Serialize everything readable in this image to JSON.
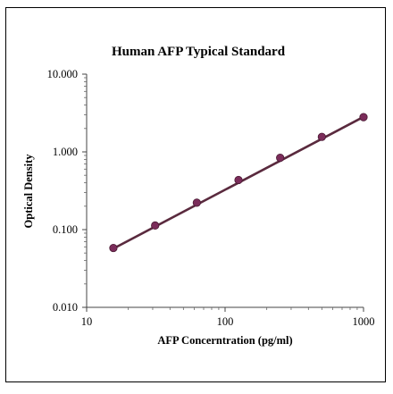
{
  "chart_data": {
    "type": "scatter",
    "title": "Human AFP Typical Standard",
    "xlabel": "AFP Concerntration (pg/ml)",
    "ylabel": "Optical Density",
    "x_scale": "log",
    "y_scale": "log",
    "xlim": [
      10,
      1000
    ],
    "ylim": [
      0.01,
      10
    ],
    "x_ticks": [
      10,
      100,
      1000
    ],
    "x_tick_labels": [
      "10",
      "100",
      "1000"
    ],
    "y_ticks": [
      0.01,
      0.1,
      1,
      10
    ],
    "y_tick_labels": [
      "0.010",
      "0.100",
      "1.000",
      "10.000"
    ],
    "grid": false,
    "series": [
      {
        "x": [
          15.6,
          31.25,
          62.5,
          125,
          250,
          500,
          1000
        ],
        "y": [
          0.058,
          0.113,
          0.222,
          0.435,
          0.84,
          1.56,
          2.8
        ]
      }
    ],
    "fit_line": {
      "x": [
        15.6,
        1000
      ],
      "y": [
        0.057,
        2.82
      ]
    },
    "colors": {
      "line": "#5a2a3e",
      "marker": "#7b2c5a"
    }
  }
}
